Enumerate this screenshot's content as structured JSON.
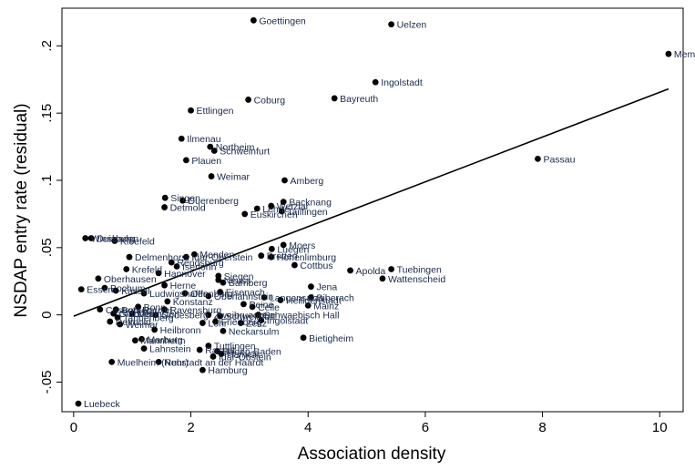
{
  "chart_data": {
    "type": "scatter",
    "xlabel": "Association density",
    "ylabel": "NSDAP entry rate (residual)",
    "xlim": [
      -0.2,
      10.4
    ],
    "ylim": [
      -0.072,
      0.228
    ],
    "xticks": [
      0,
      2,
      4,
      6,
      8,
      10
    ],
    "yticks": [
      -0.05,
      0,
      0.05,
      0.1,
      0.15,
      0.2
    ],
    "ytick_labels": [
      "-.05",
      "0",
      ".05",
      ".1",
      ".15",
      ".2"
    ],
    "grid": false,
    "legend": "none",
    "fit_line": {
      "x": [
        0,
        10.15
      ],
      "y": [
        -0.001,
        0.168
      ]
    },
    "points": [
      {
        "x": 3.07,
        "y": 0.219,
        "label": "Goettingen"
      },
      {
        "x": 5.42,
        "y": 0.216,
        "label": "Uelzen"
      },
      {
        "x": 10.15,
        "y": 0.194,
        "label": "Mem"
      },
      {
        "x": 5.15,
        "y": 0.173,
        "label": "Ingolstadt"
      },
      {
        "x": 4.45,
        "y": 0.161,
        "label": "Bayreuth"
      },
      {
        "x": 2.98,
        "y": 0.16,
        "label": "Coburg"
      },
      {
        "x": 2.0,
        "y": 0.152,
        "label": "Ettlingen"
      },
      {
        "x": 1.84,
        "y": 0.131,
        "label": "Ilmenau"
      },
      {
        "x": 2.33,
        "y": 0.125,
        "label": "Northeim"
      },
      {
        "x": 2.4,
        "y": 0.122,
        "label": "Schweinfurt"
      },
      {
        "x": 1.92,
        "y": 0.115,
        "label": "Plauen"
      },
      {
        "x": 7.92,
        "y": 0.116,
        "label": "Passau"
      },
      {
        "x": 2.35,
        "y": 0.103,
        "label": "Weimar"
      },
      {
        "x": 3.6,
        "y": 0.1,
        "label": "Amberg"
      },
      {
        "x": 1.56,
        "y": 0.087,
        "label": "Singen"
      },
      {
        "x": 1.86,
        "y": 0.085,
        "label": "Duerenberg"
      },
      {
        "x": 1.55,
        "y": 0.08,
        "label": "Detmold"
      },
      {
        "x": 3.58,
        "y": 0.084,
        "label": "Backnang"
      },
      {
        "x": 3.13,
        "y": 0.079,
        "label": "Lehrte"
      },
      {
        "x": 3.37,
        "y": 0.081,
        "label": "Wetzlar"
      },
      {
        "x": 2.92,
        "y": 0.075,
        "label": "Euskirchen"
      },
      {
        "x": 3.55,
        "y": 0.077,
        "label": "Tailfingen"
      },
      {
        "x": 0.2,
        "y": 0.057,
        "label": "Wiesbaden"
      },
      {
        "x": 0.3,
        "y": 0.057,
        "label": "Duisburg"
      },
      {
        "x": 0.7,
        "y": 0.055,
        "label": "Kleefeld"
      },
      {
        "x": 3.58,
        "y": 0.052,
        "label": "Moers"
      },
      {
        "x": 3.38,
        "y": 0.049,
        "label": "Luegen"
      },
      {
        "x": 3.2,
        "y": 0.044,
        "label": "Bretten"
      },
      {
        "x": 3.37,
        "y": 0.043,
        "label": "Hohenlimburg"
      },
      {
        "x": 2.06,
        "y": 0.045,
        "label": "Menden"
      },
      {
        "x": 0.95,
        "y": 0.043,
        "label": "Delmenhorst"
      },
      {
        "x": 1.92,
        "y": 0.043,
        "label": "Idar-Oberstein"
      },
      {
        "x": 3.77,
        "y": 0.037,
        "label": "Cottbus"
      },
      {
        "x": 4.72,
        "y": 0.033,
        "label": "Apolda"
      },
      {
        "x": 5.42,
        "y": 0.034,
        "label": "Tuebingen"
      },
      {
        "x": 5.27,
        "y": 0.027,
        "label": "Wattenscheid"
      },
      {
        "x": 1.67,
        "y": 0.039,
        "label": "Rendsburg"
      },
      {
        "x": 1.76,
        "y": 0.036,
        "label": "Iserlohn"
      },
      {
        "x": 0.9,
        "y": 0.034,
        "label": "Krefeld"
      },
      {
        "x": 1.45,
        "y": 0.031,
        "label": "Hannover"
      },
      {
        "x": 2.47,
        "y": 0.029,
        "label": "Siegen"
      },
      {
        "x": 2.47,
        "y": 0.026,
        "label": "Neuss"
      },
      {
        "x": 2.55,
        "y": 0.024,
        "label": "Bamberg"
      },
      {
        "x": 0.42,
        "y": 0.027,
        "label": "Oberhausen"
      },
      {
        "x": 1.55,
        "y": 0.022,
        "label": "Herne"
      },
      {
        "x": 0.13,
        "y": 0.019,
        "label": "Essen"
      },
      {
        "x": 0.53,
        "y": 0.02,
        "label": "Bochum"
      },
      {
        "x": 0.72,
        "y": 0.018,
        "label": "Kassel"
      },
      {
        "x": 1.2,
        "y": 0.016,
        "label": "Ludwigshafen"
      },
      {
        "x": 1.9,
        "y": 0.016,
        "label": "Offenburg"
      },
      {
        "x": 2.5,
        "y": 0.017,
        "label": "Eisenach"
      },
      {
        "x": 2.3,
        "y": 0.014,
        "label": "Oberlahnstein"
      },
      {
        "x": 3.25,
        "y": 0.013,
        "label": "Langensalza"
      },
      {
        "x": 3.53,
        "y": 0.011,
        "label": "Heiligenstadt"
      },
      {
        "x": 4.05,
        "y": 0.013,
        "label": "Biberach"
      },
      {
        "x": 4.05,
        "y": 0.021,
        "label": "Jena"
      },
      {
        "x": 1.6,
        "y": 0.01,
        "label": "Konstanz"
      },
      {
        "x": 1.1,
        "y": 0.006,
        "label": "Bonn"
      },
      {
        "x": 2.9,
        "y": 0.008,
        "label": "Peine"
      },
      {
        "x": 3.05,
        "y": 0.006,
        "label": "Celle"
      },
      {
        "x": 4.0,
        "y": 0.007,
        "label": "Mainz"
      },
      {
        "x": 0.45,
        "y": 0.004,
        "label": "Castrop-Rauxel"
      },
      {
        "x": 0.72,
        "y": 0.004,
        "label": "Bottrop"
      },
      {
        "x": 1.55,
        "y": 0.004,
        "label": "Ravensburg"
      },
      {
        "x": 0.68,
        "y": 0.001,
        "label": "Gladbeck"
      },
      {
        "x": 1.0,
        "y": 0.001,
        "label": "Muenster"
      },
      {
        "x": 1.4,
        "y": 0.0,
        "label": "Godesberg"
      },
      {
        "x": 2.3,
        "y": 0.0,
        "label": "Zweibruecken"
      },
      {
        "x": 2.5,
        "y": -0.001,
        "label": "Schweinfurt"
      },
      {
        "x": 3.15,
        "y": 0.0,
        "label": "Schwaebisch Hall"
      },
      {
        "x": 3.2,
        "y": -0.004,
        "label": "Ingolstadt"
      },
      {
        "x": 0.75,
        "y": -0.002,
        "label": "Tannenberg"
      },
      {
        "x": 0.62,
        "y": -0.005,
        "label": "Detmold"
      },
      {
        "x": 0.79,
        "y": -0.007,
        "label": "Weimar"
      },
      {
        "x": 2.42,
        "y": -0.005,
        "label": "Friedberg"
      },
      {
        "x": 2.2,
        "y": -0.006,
        "label": "Lohr"
      },
      {
        "x": 2.85,
        "y": -0.006,
        "label": "Zeitz"
      },
      {
        "x": 1.38,
        "y": -0.011,
        "label": "Heilbronn"
      },
      {
        "x": 2.55,
        "y": -0.012,
        "label": "Neckarsulm"
      },
      {
        "x": 3.92,
        "y": -0.017,
        "label": "Bietigheim"
      },
      {
        "x": 1.05,
        "y": -0.019,
        "label": "Mannheim"
      },
      {
        "x": 1.16,
        "y": -0.018,
        "label": "Marburg"
      },
      {
        "x": 2.3,
        "y": -0.023,
        "label": "Tuttlingen"
      },
      {
        "x": 1.2,
        "y": -0.025,
        "label": "Lahnstein"
      },
      {
        "x": 2.15,
        "y": -0.026,
        "label": "Rastatt"
      },
      {
        "x": 2.45,
        "y": -0.027,
        "label": "Baden-Baden"
      },
      {
        "x": 2.52,
        "y": -0.029,
        "label": "Hameln"
      },
      {
        "x": 2.38,
        "y": -0.031,
        "label": "Idar-Obstein"
      },
      {
        "x": 0.65,
        "y": -0.035,
        "label": "Muelheim (Ruhr)"
      },
      {
        "x": 1.45,
        "y": -0.035,
        "label": "Neustadt an der Haardt"
      },
      {
        "x": 2.2,
        "y": -0.041,
        "label": "Hamburg"
      },
      {
        "x": 0.08,
        "y": -0.066,
        "label": "Luebeck"
      }
    ]
  }
}
